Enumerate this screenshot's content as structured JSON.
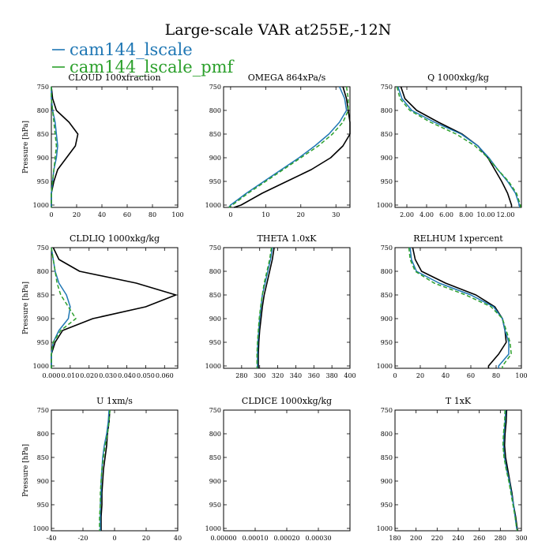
{
  "title": "Large-scale VAR at255E,-12N",
  "legend": [
    {
      "name": "cam144_lscale",
      "color": "#1f77b4",
      "dash": false
    },
    {
      "name": "cam144_lscale_pmf",
      "color": "#2ca02c",
      "dash": true
    }
  ],
  "colors": {
    "control": "#000000",
    "lscale": "#1f77b4",
    "pmf": "#2ca02c"
  },
  "chart_data": [
    {
      "type": "line",
      "title": "CLOUD  100xfraction",
      "ylabel": "Pressure [hPa]",
      "yticks": [
        "750",
        "800",
        "850",
        "900",
        "950",
        "1000"
      ],
      "xlim": [
        0,
        100
      ],
      "xticks": [
        0,
        20,
        40,
        60,
        80,
        100
      ],
      "xticklabels": [
        "0",
        "20",
        "40",
        "60",
        "80",
        "100"
      ],
      "ylim": [
        1005,
        750
      ],
      "yvalues": [
        750,
        775,
        800,
        825,
        850,
        875,
        900,
        925,
        950,
        975,
        1000,
        1005
      ],
      "series": [
        {
          "style": "control",
          "values": [
            0,
            1,
            4,
            14,
            21,
            19,
            12,
            5,
            2,
            0,
            0,
            0
          ]
        },
        {
          "name": "cam144_lscale",
          "style": "lscale",
          "values": [
            0,
            0,
            1,
            3,
            4,
            5,
            4,
            2,
            1,
            0,
            0,
            0
          ]
        },
        {
          "name": "cam144_lscale_pmf",
          "style": "pmf",
          "values": [
            0,
            0,
            1,
            2,
            3,
            4,
            3,
            2,
            1,
            0,
            0,
            0
          ]
        }
      ]
    },
    {
      "type": "line",
      "title": "OMEGA  864xPa/s",
      "ylabel": "",
      "yticks": [
        "750",
        "800",
        "850",
        "900",
        "950",
        "1000"
      ],
      "xlim": [
        -2,
        34
      ],
      "xticks": [
        0,
        10,
        20,
        30
      ],
      "xticklabels": [
        "0",
        "10",
        "20",
        "30"
      ],
      "ylim": [
        1005,
        750
      ],
      "yvalues": [
        750,
        775,
        800,
        825,
        850,
        875,
        900,
        925,
        950,
        975,
        1000,
        1005
      ],
      "series": [
        {
          "style": "control",
          "values": [
            32,
            33,
            33.5,
            34,
            34,
            32,
            28.5,
            23,
            16,
            9,
            3,
            1
          ]
        },
        {
          "name": "cam144_lscale",
          "style": "lscale",
          "values": [
            31,
            32.5,
            33,
            31,
            28,
            24,
            19.5,
            14.5,
            9.5,
            4.5,
            0,
            -0.5
          ]
        },
        {
          "name": "cam144_lscale_pmf",
          "style": "pmf",
          "values": [
            33,
            33.5,
            33.5,
            32,
            29,
            25,
            20,
            15,
            10,
            5,
            0.5,
            -0.5
          ]
        }
      ]
    },
    {
      "type": "line",
      "title": "Q  1000xkg/kg",
      "ylabel": "",
      "yticks": [
        "750",
        "800",
        "850",
        "900",
        "950",
        "1000"
      ],
      "xlim": [
        0.8,
        13.6
      ],
      "xticks": [
        2,
        4,
        6,
        8,
        10,
        12
      ],
      "xticklabels": [
        "2.00",
        "4.00",
        "6.00",
        "8.00",
        "10.00",
        "12.00"
      ],
      "ylim": [
        1005,
        750
      ],
      "yvalues": [
        750,
        775,
        800,
        825,
        850,
        875,
        900,
        925,
        950,
        975,
        1000,
        1005
      ],
      "series": [
        {
          "style": "control",
          "values": [
            1.4,
            1.8,
            3.0,
            5.2,
            7.6,
            9.2,
            10.2,
            10.9,
            11.6,
            12.2,
            12.6,
            12.6
          ]
        },
        {
          "name": "cam144_lscale",
          "style": "lscale",
          "values": [
            1.1,
            1.5,
            2.5,
            4.8,
            7.5,
            9.2,
            10.3,
            11.2,
            12.2,
            13.0,
            13.4,
            13.4
          ]
        },
        {
          "name": "cam144_lscale_pmf",
          "style": "pmf",
          "values": [
            1.0,
            1.3,
            2.3,
            4.4,
            7.0,
            8.9,
            10.2,
            11.2,
            12.3,
            13.1,
            13.5,
            13.5
          ]
        }
      ]
    },
    {
      "type": "line",
      "title": "CLDLIQ  1000xkg/kg",
      "ylabel": "Pressure [hPa]",
      "yticks": [
        "750",
        "800",
        "850",
        "900",
        "950",
        "1000"
      ],
      "xlim": [
        0,
        0.067
      ],
      "xticks": [
        0,
        0.01,
        0.02,
        0.03,
        0.04,
        0.05,
        0.06
      ],
      "xticklabels": [
        "0.000",
        "0.010",
        "0.020",
        "0.030",
        "0.040",
        "0.050",
        "0.060"
      ],
      "ylim": [
        1005,
        750
      ],
      "yvalues": [
        750,
        775,
        800,
        825,
        850,
        875,
        900,
        925,
        950,
        975,
        1000,
        1005
      ],
      "series": [
        {
          "style": "control",
          "values": [
            0.001,
            0.004,
            0.015,
            0.045,
            0.066,
            0.05,
            0.022,
            0.006,
            0.002,
            0,
            0,
            0
          ]
        },
        {
          "name": "cam144_lscale",
          "style": "lscale",
          "values": [
            0,
            0.001,
            0.002,
            0.004,
            0.008,
            0.01,
            0.009,
            0.004,
            0.001,
            0,
            0,
            0
          ]
        },
        {
          "name": "cam144_lscale_pmf",
          "style": "pmf",
          "values": [
            0,
            0.001,
            0.002,
            0.003,
            0.005,
            0.009,
            0.013,
            0.005,
            0.001,
            0,
            0,
            0
          ]
        }
      ]
    },
    {
      "type": "line",
      "title": "THETA  1.0xK",
      "ylabel": "",
      "yticks": [
        "750",
        "800",
        "850",
        "900",
        "950",
        "1000"
      ],
      "xlim": [
        260,
        400
      ],
      "xticks": [
        280,
        300,
        320,
        340,
        360,
        380,
        400
      ],
      "xticklabels": [
        "280",
        "300",
        "320",
        "340",
        "360",
        "380",
        "400"
      ],
      "ylim": [
        1005,
        750
      ],
      "yvalues": [
        750,
        775,
        800,
        825,
        850,
        875,
        900,
        925,
        950,
        975,
        1000,
        1005
      ],
      "series": [
        {
          "style": "control",
          "values": [
            316,
            314,
            311,
            308,
            305,
            303,
            301.5,
            300,
            299,
            298.5,
            298.5,
            298.5
          ]
        },
        {
          "name": "cam144_lscale",
          "style": "lscale",
          "values": [
            314,
            312,
            309,
            306,
            303,
            301.5,
            300,
            299,
            298,
            297.5,
            297.5,
            297.5
          ]
        },
        {
          "name": "cam144_lscale_pmf",
          "style": "pmf",
          "values": [
            313,
            311,
            308,
            305,
            303,
            301,
            299.5,
            298.5,
            297.5,
            297,
            297,
            297
          ]
        }
      ]
    },
    {
      "type": "line",
      "title": "RELHUM  1xpercent",
      "ylabel": "",
      "yticks": [
        "750",
        "800",
        "850",
        "900",
        "950",
        "1000"
      ],
      "xlim": [
        0,
        100
      ],
      "xticks": [
        0,
        20,
        40,
        60,
        80,
        100
      ],
      "xticklabels": [
        "0",
        "20",
        "40",
        "60",
        "80",
        "100"
      ],
      "ylim": [
        1005,
        750
      ],
      "yvalues": [
        750,
        775,
        800,
        825,
        850,
        875,
        900,
        925,
        950,
        975,
        1000,
        1005
      ],
      "series": [
        {
          "style": "control",
          "values": [
            14,
            16,
            21,
            40,
            64,
            79,
            85,
            87,
            88,
            82,
            74,
            74
          ]
        },
        {
          "name": "cam144_lscale",
          "style": "lscale",
          "values": [
            12,
            13,
            17,
            35,
            60,
            78,
            85,
            87,
            90,
            90,
            82,
            82
          ]
        },
        {
          "name": "cam144_lscale_pmf",
          "style": "pmf",
          "values": [
            11,
            12,
            16,
            31,
            56,
            76,
            85,
            88,
            91,
            92,
            85,
            85
          ]
        }
      ]
    },
    {
      "type": "line",
      "title": "U  1xm/s",
      "ylabel": "Pressure [hPa]",
      "yticks": [
        "750",
        "800",
        "850",
        "900",
        "950",
        "1000"
      ],
      "xlim": [
        -40,
        40
      ],
      "xticks": [
        -40,
        -20,
        0,
        20,
        40
      ],
      "xticklabels": [
        "-40",
        "-20",
        "0",
        "20",
        "40"
      ],
      "ylim": [
        1005,
        750
      ],
      "yvalues": [
        750,
        775,
        800,
        825,
        850,
        875,
        900,
        925,
        950,
        975,
        1000,
        1005
      ],
      "series": [
        {
          "style": "control",
          "values": [
            -3,
            -3.5,
            -4.5,
            -5,
            -6,
            -7,
            -7.5,
            -8,
            -8,
            -8.5,
            -8.5,
            -8.5
          ]
        },
        {
          "name": "cam144_lscale",
          "style": "lscale",
          "values": [
            -3.5,
            -4,
            -5,
            -6.5,
            -7.5,
            -8,
            -8.5,
            -8.5,
            -9,
            -9,
            -9,
            -9
          ]
        },
        {
          "name": "cam144_lscale_pmf",
          "style": "pmf",
          "values": [
            -3,
            -3.5,
            -4.5,
            -6,
            -7,
            -8,
            -8.5,
            -9,
            -9,
            -9.5,
            -9.5,
            -9.5
          ]
        }
      ]
    },
    {
      "type": "line",
      "title": "CLDICE  1000xkg/kg",
      "ylabel": "",
      "yticks": [
        "750",
        "800",
        "850",
        "900",
        "950",
        "1000"
      ],
      "xlim": [
        0,
        0.0004
      ],
      "xticks": [
        0,
        0.0001,
        0.0002,
        0.0003
      ],
      "xticklabels": [
        "0.00000",
        "0.00010",
        "0.00020",
        "0.00030"
      ],
      "ylim": [
        1005,
        750
      ],
      "yvalues": [],
      "series": []
    },
    {
      "type": "line",
      "title": "T  1xK",
      "ylabel": "",
      "yticks": [
        "750",
        "800",
        "850",
        "900",
        "950",
        "1000"
      ],
      "xlim": [
        180,
        300
      ],
      "xticks": [
        180,
        200,
        220,
        240,
        260,
        280,
        300
      ],
      "xticklabels": [
        "180",
        "200",
        "220",
        "240",
        "260",
        "280",
        "300"
      ],
      "ylim": [
        1005,
        750
      ],
      "yvalues": [
        750,
        775,
        800,
        825,
        850,
        875,
        900,
        925,
        950,
        975,
        1000,
        1005
      ],
      "series": [
        {
          "style": "control",
          "values": [
            286,
            285.5,
            284.5,
            284,
            285,
            287,
            289,
            291,
            292.5,
            294.5,
            296,
            296.5
          ]
        },
        {
          "name": "cam144_lscale",
          "style": "lscale",
          "values": [
            285,
            284.5,
            283.5,
            283,
            284,
            286,
            288.5,
            290.5,
            292.5,
            294,
            295.5,
            296
          ]
        },
        {
          "name": "cam144_lscale_pmf",
          "style": "pmf",
          "values": [
            284.5,
            284,
            283,
            282.5,
            283.5,
            285.5,
            288,
            290,
            292,
            294,
            295.5,
            296
          ]
        }
      ]
    }
  ]
}
